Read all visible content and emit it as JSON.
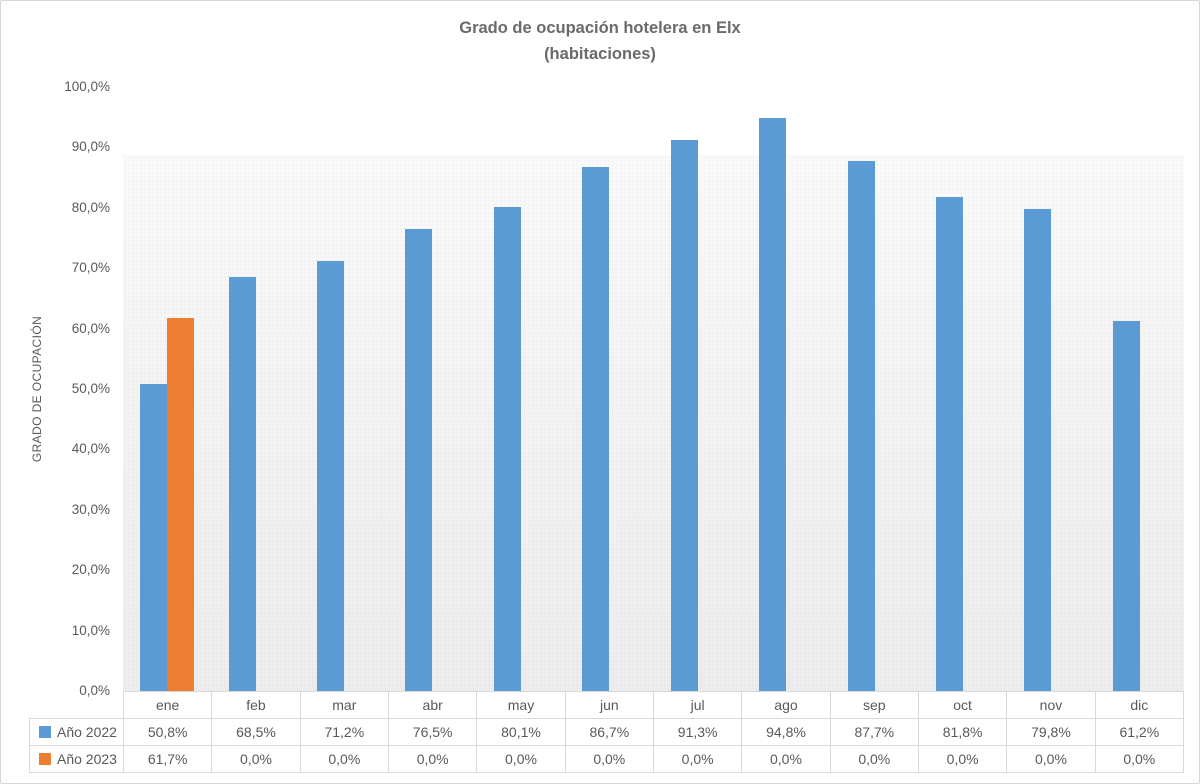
{
  "chart_data": {
    "type": "bar",
    "title": "Grado de ocupación hotelera en Elx (habitaciones)",
    "title_lines": [
      "Grado de ocupación hotelera en Elx",
      "(habitaciones)"
    ],
    "ylabel": "GRADO DE OCUPACIÓN",
    "xlabel": "",
    "categories": [
      "ene",
      "feb",
      "mar",
      "abr",
      "may",
      "jun",
      "jul",
      "ago",
      "sep",
      "oct",
      "nov",
      "dic"
    ],
    "series": [
      {
        "name": "Año 2022",
        "color": "#5B9BD5",
        "values": [
          50.8,
          68.5,
          71.2,
          76.5,
          80.1,
          86.7,
          91.3,
          94.8,
          87.7,
          81.8,
          79.8,
          61.2
        ],
        "values_display": [
          "50,8%",
          "68,5%",
          "71,2%",
          "76,5%",
          "80,1%",
          "86,7%",
          "91,3%",
          "94,8%",
          "87,7%",
          "81,8%",
          "79,8%",
          "61,2%"
        ]
      },
      {
        "name": "Año 2023",
        "color": "#ED7D31",
        "values": [
          61.7,
          0,
          0,
          0,
          0,
          0,
          0,
          0,
          0,
          0,
          0,
          0
        ],
        "values_display": [
          "61,7%",
          "0,0%",
          "0,0%",
          "0,0%",
          "0,0%",
          "0,0%",
          "0,0%",
          "0,0%",
          "0,0%",
          "0,0%",
          "0,0%",
          "0,0%"
        ]
      }
    ],
    "ylim": [
      0,
      100
    ],
    "ytick_values": [
      0,
      10,
      20,
      30,
      40,
      50,
      60,
      70,
      80,
      90,
      100
    ],
    "ytick_labels": [
      "0,0%",
      "10,0%",
      "20,0%",
      "30,0%",
      "40,0%",
      "50,0%",
      "60,0%",
      "70,0%",
      "80,0%",
      "90,0%",
      "100,0%"
    ],
    "grid": false,
    "legend_position": "table-left",
    "data_table_attached": true
  },
  "colors": {
    "text": "#595959",
    "table_border": "#D9D9D9",
    "frame_border": "#D7D7D7",
    "accent_2022": "#5B9BD5",
    "accent_2023": "#ED7D31"
  }
}
